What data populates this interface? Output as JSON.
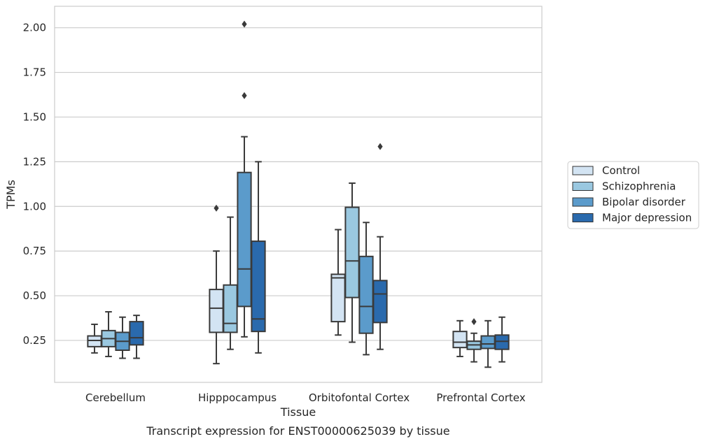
{
  "chart_data": {
    "type": "box",
    "xlabel": "Tissue",
    "ylabel": "TPMs",
    "caption": "Transcript expression for ENST00000625039 by tissue",
    "yticks": [
      "0.25",
      "0.50",
      "0.75",
      "1.00",
      "1.25",
      "1.50",
      "1.75",
      "2.00"
    ],
    "ytick_values": [
      0.25,
      0.5,
      0.75,
      1.0,
      1.25,
      1.5,
      1.75,
      2.0
    ],
    "ylim": [
      0.015,
      2.12
    ],
    "grid": true,
    "legend_position": "right",
    "categories": [
      "Cerebellum",
      "Hipppocampus",
      "Orbitofontal Cortex",
      "Prefrontal Cortex"
    ],
    "series": [
      {
        "name": "Control",
        "color": "#d3e4f3",
        "boxes": [
          {
            "min": 0.18,
            "q1": 0.215,
            "median": 0.25,
            "q3": 0.275,
            "max": 0.34,
            "outliers": []
          },
          {
            "min": 0.12,
            "q1": 0.295,
            "median": 0.43,
            "q3": 0.535,
            "max": 0.75,
            "outliers": [
              0.99
            ]
          },
          {
            "min": 0.28,
            "q1": 0.355,
            "median": 0.6,
            "q3": 0.62,
            "max": 0.87,
            "outliers": []
          },
          {
            "min": 0.16,
            "q1": 0.21,
            "median": 0.24,
            "q3": 0.3,
            "max": 0.36,
            "outliers": []
          }
        ]
      },
      {
        "name": "Schizophrenia",
        "color": "#9ac8e0",
        "boxes": [
          {
            "min": 0.16,
            "q1": 0.215,
            "median": 0.26,
            "q3": 0.305,
            "max": 0.41,
            "outliers": []
          },
          {
            "min": 0.2,
            "q1": 0.295,
            "median": 0.345,
            "q3": 0.56,
            "max": 0.94,
            "outliers": []
          },
          {
            "min": 0.24,
            "q1": 0.49,
            "median": 0.695,
            "q3": 0.995,
            "max": 1.13,
            "outliers": []
          },
          {
            "min": 0.13,
            "q1": 0.2,
            "median": 0.225,
            "q3": 0.245,
            "max": 0.29,
            "outliers": [
              0.355
            ]
          }
        ]
      },
      {
        "name": "Bipolar disorder",
        "color": "#5b9bcb",
        "boxes": [
          {
            "min": 0.15,
            "q1": 0.195,
            "median": 0.245,
            "q3": 0.295,
            "max": 0.38,
            "outliers": []
          },
          {
            "min": 0.27,
            "q1": 0.44,
            "median": 0.65,
            "q3": 1.19,
            "max": 1.39,
            "outliers": [
              1.62,
              2.02
            ]
          },
          {
            "min": 0.17,
            "q1": 0.29,
            "median": 0.44,
            "q3": 0.72,
            "max": 0.91,
            "outliers": []
          },
          {
            "min": 0.1,
            "q1": 0.205,
            "median": 0.23,
            "q3": 0.275,
            "max": 0.36,
            "outliers": []
          }
        ]
      },
      {
        "name": "Major depression",
        "color": "#2a6aad",
        "boxes": [
          {
            "min": 0.15,
            "q1": 0.225,
            "median": 0.265,
            "q3": 0.355,
            "max": 0.39,
            "outliers": []
          },
          {
            "min": 0.18,
            "q1": 0.3,
            "median": 0.37,
            "q3": 0.805,
            "max": 1.25,
            "outliers": []
          },
          {
            "min": 0.2,
            "q1": 0.35,
            "median": 0.51,
            "q3": 0.585,
            "max": 0.83,
            "outliers": [
              1.335
            ]
          },
          {
            "min": 0.13,
            "q1": 0.2,
            "median": 0.245,
            "q3": 0.28,
            "max": 0.38,
            "outliers": []
          }
        ]
      }
    ]
  }
}
